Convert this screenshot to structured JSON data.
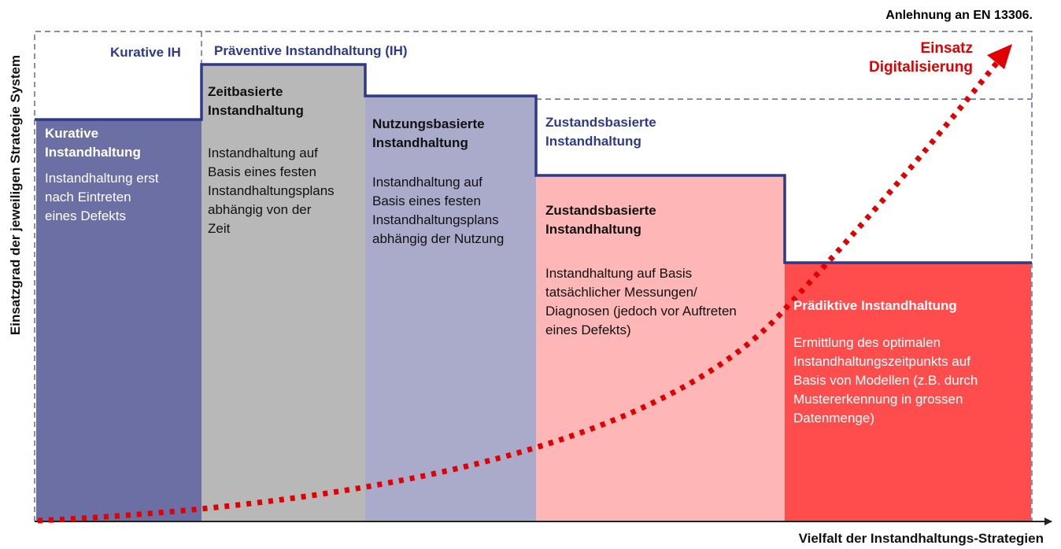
{
  "header": {
    "reference": "Anlehnung an EN 13306."
  },
  "axes": {
    "y_label": "Einsatzgrad der jeweiligen Strategie System",
    "x_label": "Vielfalt der Instandhaltungs-Strategien"
  },
  "groups": {
    "curative": "Kurative IH",
    "preventive": "Präventive Instandhaltung (IH)"
  },
  "arrow_label": "Einsatz\nDigitalisierung",
  "strategies": [
    {
      "title": "Kurative\nInstandhaltung",
      "description": "Instandhaltung erst\nnach Eintreten\neines Defekts",
      "color": "#6b6fa3"
    },
    {
      "title": "Zeitbasierte\nInstandhaltung",
      "description": "Instandhaltung auf\nBasis eines festen\nInstandhaltungsplans\nabhängig von der\nZeit",
      "color": "#b8b8b8"
    },
    {
      "title": "Nutzungsbasierte\nInstandhaltung",
      "description": "Instandhaltung auf\nBasis eines festen\nInstandhaltungsplans\nabhängig der Nutzung",
      "color": "#aaaacb"
    },
    {
      "title": "Zustandsbasierte\nInstandhaltung",
      "description": "Instandhaltung auf Basis\ntatsächlicher Messungen/\nDiagnosen (jedoch vor Auftreten\neines Defekts)",
      "color": "#ffb6b6"
    },
    {
      "title": "Prädiktive Instandhaltung",
      "description": "Ermittlung des optimalen\nInstandhaltungszeitpunkts auf\nBasis von Modellen (z.B. durch\nMustererkennung in grossen\nDatenmenge)",
      "color": "#ff4d4d"
    }
  ],
  "overflow_title": "Zustandsbasierte\nInstandhaltung",
  "colors": {
    "navy": "#2e3a87",
    "arrow_red": "#e00000",
    "dash": "#3a4a7a"
  }
}
